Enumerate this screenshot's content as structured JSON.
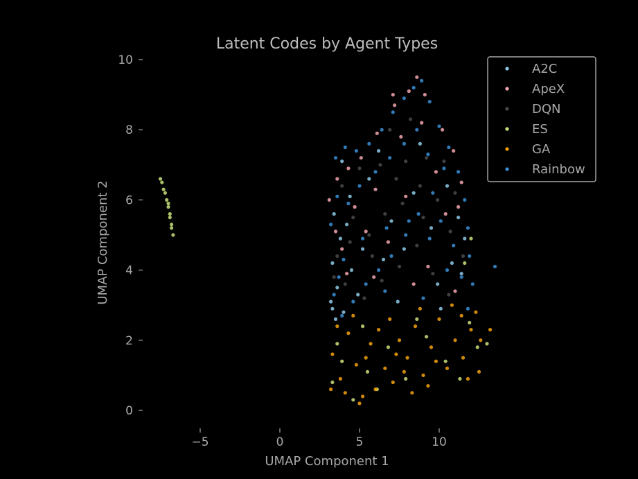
{
  "chart_data": {
    "type": "scatter",
    "title": "Latent Codes by Agent Types",
    "xlabel": "UMAP Component 1",
    "ylabel": "UMAP Component 2",
    "xlim": [
      -8.5,
      14.5
    ],
    "ylim": [
      -0.4,
      10.3
    ],
    "x_ticks": [
      -5,
      0,
      5,
      10
    ],
    "x_tick_labels": [
      "−5",
      "0",
      "5",
      "10"
    ],
    "y_ticks": [
      0,
      2,
      4,
      6,
      8,
      10
    ],
    "y_tick_labels": [
      "0",
      "2",
      "4",
      "6",
      "8",
      "10"
    ],
    "grid": false,
    "legend_position": "top-right",
    "series": [
      {
        "name": "A2C",
        "color": "#8ecae6",
        "points": [
          [
            3.4,
            5.6
          ],
          [
            3.8,
            4.9
          ],
          [
            4.2,
            5.3
          ],
          [
            3.3,
            4.2
          ],
          [
            3.6,
            3.5
          ],
          [
            4.5,
            4.0
          ],
          [
            5.2,
            4.6
          ],
          [
            3.2,
            3.1
          ],
          [
            4.0,
            2.8
          ],
          [
            3.5,
            2.6
          ],
          [
            6.5,
            4.3
          ],
          [
            7.8,
            4.6
          ],
          [
            9.5,
            5.2
          ],
          [
            11.2,
            5.5
          ],
          [
            11.6,
            4.9
          ],
          [
            10.8,
            4.2
          ],
          [
            8.4,
            6.2
          ],
          [
            5.6,
            6.6
          ],
          [
            4.4,
            6.1
          ],
          [
            7.0,
            5.4
          ],
          [
            9.9,
            3.6
          ],
          [
            11.4,
            3.9
          ],
          [
            3.9,
            7.1
          ],
          [
            6.2,
            7.4
          ],
          [
            8.8,
            7.6
          ],
          [
            10.5,
            6.4
          ],
          [
            4.9,
            3.3
          ],
          [
            7.4,
            3.1
          ],
          [
            10.1,
            2.9
          ],
          [
            3.3,
            2.9
          ]
        ]
      },
      {
        "name": "ApeX",
        "color": "#f4a6b0",
        "points": [
          [
            3.1,
            6.0
          ],
          [
            3.6,
            6.6
          ],
          [
            4.3,
            6.9
          ],
          [
            5.1,
            7.2
          ],
          [
            6.1,
            7.9
          ],
          [
            7.2,
            8.7
          ],
          [
            8.1,
            9.1
          ],
          [
            8.6,
            9.5
          ],
          [
            9.1,
            9.0
          ],
          [
            10.2,
            8.0
          ],
          [
            10.9,
            7.4
          ],
          [
            11.4,
            6.5
          ],
          [
            11.2,
            5.8
          ],
          [
            9.8,
            6.8
          ],
          [
            7.6,
            7.8
          ],
          [
            6.0,
            6.3
          ],
          [
            4.7,
            5.8
          ],
          [
            8.9,
            8.2
          ],
          [
            7.9,
            6.1
          ],
          [
            5.4,
            5.1
          ],
          [
            10.4,
            5.6
          ],
          [
            3.9,
            4.6
          ],
          [
            6.8,
            4.8
          ],
          [
            9.3,
            4.1
          ],
          [
            4.2,
            3.9
          ],
          [
            8.4,
            3.6
          ],
          [
            11.0,
            3.4
          ],
          [
            5.9,
            3.8
          ],
          [
            3.5,
            5.1
          ],
          [
            7.1,
            9.0
          ]
        ]
      },
      {
        "name": "DQN",
        "color": "#4a4a4a",
        "points": [
          [
            3.6,
            4.4
          ],
          [
            4.4,
            4.8
          ],
          [
            5.6,
            5.0
          ],
          [
            6.6,
            5.6
          ],
          [
            7.7,
            5.9
          ],
          [
            8.8,
            6.4
          ],
          [
            9.9,
            6.0
          ],
          [
            10.7,
            5.1
          ],
          [
            11.5,
            4.4
          ],
          [
            4.1,
            3.6
          ],
          [
            5.3,
            3.2
          ],
          [
            6.4,
            3.7
          ],
          [
            7.5,
            4.1
          ],
          [
            8.6,
            4.7
          ],
          [
            9.6,
            3.9
          ],
          [
            10.6,
            3.3
          ],
          [
            3.9,
            6.4
          ],
          [
            5.0,
            6.9
          ],
          [
            6.3,
            7.0
          ],
          [
            7.9,
            7.1
          ],
          [
            9.2,
            7.2
          ],
          [
            10.3,
            7.1
          ],
          [
            8.2,
            8.3
          ],
          [
            6.9,
            8.0
          ],
          [
            4.6,
            5.5
          ],
          [
            5.8,
            4.4
          ],
          [
            9.0,
            5.5
          ],
          [
            11.0,
            6.2
          ],
          [
            3.4,
            3.8
          ],
          [
            7.3,
            6.6
          ]
        ]
      },
      {
        "name": "ES",
        "color": "#c9e27a",
        "points": [
          [
            -7.5,
            6.6
          ],
          [
            -7.4,
            6.5
          ],
          [
            -7.3,
            6.3
          ],
          [
            -7.2,
            6.2
          ],
          [
            -7.1,
            6.0
          ],
          [
            -7.0,
            5.9
          ],
          [
            -7.0,
            5.8
          ],
          [
            -6.9,
            5.6
          ],
          [
            -6.9,
            5.5
          ],
          [
            -6.8,
            5.3
          ],
          [
            -6.8,
            5.2
          ],
          [
            -6.7,
            5.0
          ],
          [
            3.3,
            0.8
          ],
          [
            3.9,
            1.4
          ],
          [
            4.6,
            0.3
          ],
          [
            5.5,
            1.1
          ],
          [
            6.8,
            1.8
          ],
          [
            7.9,
            0.9
          ],
          [
            9.2,
            2.1
          ],
          [
            10.4,
            1.4
          ],
          [
            11.3,
            0.9
          ],
          [
            12.4,
            1.8
          ],
          [
            11.9,
            2.5
          ],
          [
            5.2,
            2.4
          ],
          [
            3.6,
            1.9
          ],
          [
            8.6,
            2.6
          ],
          [
            12.0,
            4.9
          ],
          [
            11.6,
            4.2
          ],
          [
            13.0,
            1.9
          ],
          [
            6.1,
            0.6
          ]
        ]
      },
      {
        "name": "GA",
        "color": "#f5a20a",
        "points": [
          [
            3.3,
            1.6
          ],
          [
            3.8,
            0.9
          ],
          [
            4.3,
            2.2
          ],
          [
            4.8,
            1.3
          ],
          [
            5.2,
            0.4
          ],
          [
            5.7,
            1.9
          ],
          [
            6.2,
            2.3
          ],
          [
            6.6,
            1.2
          ],
          [
            7.1,
            0.8
          ],
          [
            7.5,
            2.0
          ],
          [
            8.0,
            1.5
          ],
          [
            8.5,
            2.4
          ],
          [
            9.0,
            1.0
          ],
          [
            9.5,
            1.8
          ],
          [
            10.0,
            2.6
          ],
          [
            10.5,
            1.2
          ],
          [
            11.0,
            2.0
          ],
          [
            11.5,
            1.5
          ],
          [
            12.0,
            2.3
          ],
          [
            12.5,
            1.1
          ],
          [
            4.1,
            0.5
          ],
          [
            5.0,
            0.2
          ],
          [
            6.0,
            0.6
          ],
          [
            7.8,
            1.1
          ],
          [
            9.8,
            1.4
          ],
          [
            11.8,
            0.9
          ],
          [
            12.3,
            2.8
          ],
          [
            13.2,
            2.3
          ],
          [
            4.6,
            2.7
          ],
          [
            8.8,
            2.9
          ],
          [
            3.2,
            0.6
          ],
          [
            6.9,
            2.6
          ],
          [
            10.8,
            3.0
          ],
          [
            5.4,
            1.5
          ],
          [
            7.3,
            1.6
          ],
          [
            9.3,
            0.7
          ],
          [
            11.4,
            2.7
          ],
          [
            3.6,
            2.4
          ],
          [
            12.6,
            2.0
          ],
          [
            8.3,
            0.5
          ]
        ]
      },
      {
        "name": "Rainbow",
        "color": "#3a8fd6",
        "points": [
          [
            3.2,
            5.3
          ],
          [
            3.6,
            6.1
          ],
          [
            3.5,
            7.2
          ],
          [
            4.1,
            7.5
          ],
          [
            4.8,
            7.4
          ],
          [
            5.6,
            7.6
          ],
          [
            6.4,
            8.0
          ],
          [
            7.1,
            8.5
          ],
          [
            7.8,
            8.9
          ],
          [
            8.4,
            9.2
          ],
          [
            8.9,
            9.4
          ],
          [
            9.4,
            8.8
          ],
          [
            10.0,
            8.1
          ],
          [
            10.6,
            7.5
          ],
          [
            11.2,
            6.8
          ],
          [
            11.6,
            6.0
          ],
          [
            11.8,
            5.2
          ],
          [
            11.9,
            4.4
          ],
          [
            12.1,
            3.6
          ],
          [
            11.8,
            2.9
          ],
          [
            3.4,
            3.3
          ],
          [
            3.9,
            2.7
          ],
          [
            4.6,
            3.1
          ],
          [
            5.4,
            3.6
          ],
          [
            6.2,
            4.0
          ],
          [
            7.0,
            4.4
          ],
          [
            7.9,
            5.0
          ],
          [
            8.7,
            5.6
          ],
          [
            9.6,
            6.2
          ],
          [
            10.3,
            6.9
          ],
          [
            4.3,
            5.9
          ],
          [
            5.0,
            6.4
          ],
          [
            6.0,
            6.8
          ],
          [
            6.9,
            7.2
          ],
          [
            7.8,
            7.6
          ],
          [
            8.6,
            8.0
          ],
          [
            9.3,
            7.3
          ],
          [
            10.1,
            5.4
          ],
          [
            10.9,
            4.7
          ],
          [
            11.4,
            3.8
          ],
          [
            4.0,
            4.3
          ],
          [
            5.2,
            4.9
          ],
          [
            6.7,
            5.2
          ],
          [
            8.1,
            5.4
          ],
          [
            9.4,
            4.9
          ],
          [
            10.5,
            4.0
          ],
          [
            13.5,
            4.1
          ],
          [
            3.7,
            3.8
          ],
          [
            6.6,
            3.4
          ],
          [
            9.0,
            3.2
          ]
        ]
      }
    ]
  }
}
